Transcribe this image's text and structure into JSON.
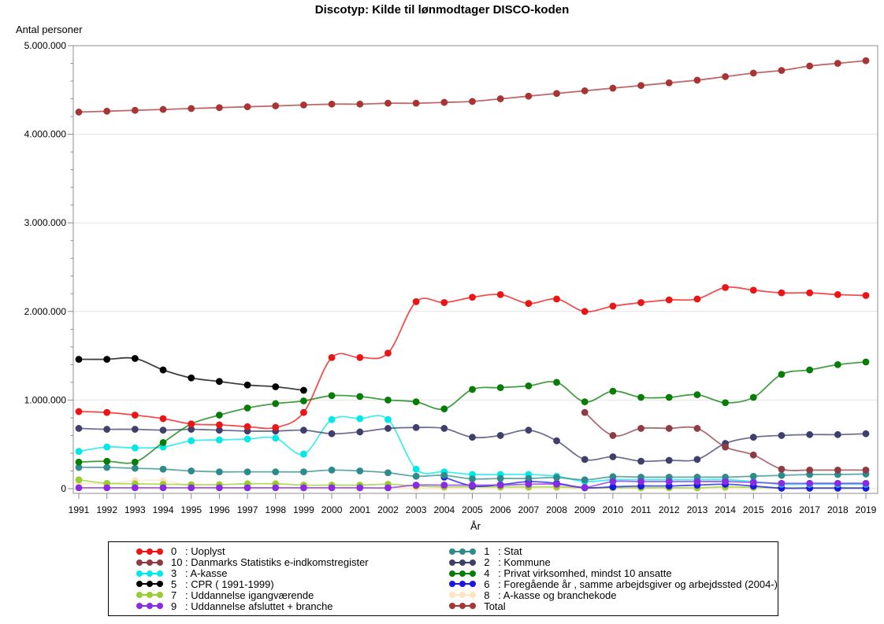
{
  "chart_data": {
    "type": "line",
    "title": "Discotyp: Kilde til lønmodtager DISCO-koden",
    "xlabel": "År",
    "ylabel": "Antal personer",
    "x": [
      1991,
      1992,
      1993,
      1994,
      1995,
      1996,
      1997,
      1998,
      1999,
      2000,
      2001,
      2002,
      2003,
      2004,
      2005,
      2006,
      2007,
      2008,
      2009,
      2010,
      2011,
      2012,
      2013,
      2014,
      2015,
      2016,
      2017,
      2018,
      2019
    ],
    "ylim": [
      0,
      5000000
    ],
    "ytick_interval": 1000000,
    "yminor_interval": 200000,
    "ytick_labels": [
      "0",
      "1.000.000",
      "2.000.000",
      "3.000.000",
      "4.000.000",
      "5.000.000"
    ],
    "grid": true,
    "legend_position": "bottom",
    "legend_rows": 6,
    "axis_color": "#8c8c8c",
    "grid_color": "#e5e5e5",
    "series": [
      {
        "id": "0",
        "code": "0",
        "label": "Uoplyst",
        "color": "#ec1414",
        "values": [
          870000,
          860000,
          830000,
          790000,
          730000,
          720000,
          700000,
          690000,
          860000,
          1480000,
          1480000,
          1530000,
          2110000,
          2100000,
          2160000,
          2190000,
          2090000,
          2140000,
          2000000,
          2060000,
          2100000,
          2130000,
          2140000,
          2270000,
          2240000,
          2210000,
          2210000,
          2190000,
          2180000
        ]
      },
      {
        "id": "10",
        "code": "10",
        "label": "Danmarks Statistiks e-indkomstregister",
        "color": "#8f3b44",
        "values": [
          null,
          null,
          null,
          null,
          null,
          null,
          null,
          null,
          null,
          null,
          null,
          null,
          null,
          null,
          null,
          null,
          null,
          null,
          860000,
          600000,
          680000,
          680000,
          680000,
          470000,
          380000,
          220000,
          210000,
          210000,
          210000
        ]
      },
      {
        "id": "3",
        "code": "3",
        "label": "A-kasse",
        "color": "#00e8e8",
        "values": [
          420000,
          470000,
          460000,
          470000,
          540000,
          550000,
          560000,
          570000,
          390000,
          780000,
          790000,
          780000,
          220000,
          190000,
          160000,
          160000,
          160000,
          140000,
          80000,
          100000,
          100000,
          100000,
          100000,
          100000,
          80000,
          50000,
          50000,
          50000,
          50000
        ]
      },
      {
        "id": "5",
        "code": "5",
        "label": "CPR ( 1991-1999)",
        "color": "#000000",
        "values": [
          1460000,
          1460000,
          1470000,
          1340000,
          1250000,
          1210000,
          1170000,
          1150000,
          1110000,
          null,
          null,
          null,
          null,
          null,
          null,
          null,
          null,
          null,
          null,
          null,
          null,
          null,
          null,
          null,
          null,
          null,
          null,
          null,
          null
        ]
      },
      {
        "id": "7",
        "code": "7",
        "label": "Uddannelse igangværende",
        "color": "#9acd32",
        "values": [
          100000,
          60000,
          55000,
          50000,
          45000,
          45000,
          55000,
          55000,
          40000,
          40000,
          40000,
          50000,
          30000,
          20000,
          20000,
          20000,
          20000,
          20000,
          10000,
          10000,
          10000,
          10000,
          10000,
          20000,
          15000,
          10000,
          10000,
          10000,
          10000
        ]
      },
      {
        "id": "9",
        "code": "9",
        "label": "Uddannelse afsluttet + branche",
        "color": "#8a2be2",
        "values": [
          10000,
          10000,
          10000,
          10000,
          10000,
          10000,
          10000,
          10000,
          10000,
          10000,
          10000,
          10000,
          40000,
          40000,
          40000,
          40000,
          50000,
          50000,
          15000,
          80000,
          80000,
          80000,
          80000,
          80000,
          70000,
          60000,
          60000,
          60000,
          60000
        ]
      },
      {
        "id": "1",
        "code": "1",
        "label": "Stat",
        "color": "#2e8b8b",
        "values": [
          240000,
          240000,
          230000,
          220000,
          200000,
          190000,
          190000,
          190000,
          190000,
          210000,
          200000,
          180000,
          140000,
          150000,
          110000,
          115000,
          115000,
          125000,
          100000,
          135000,
          130000,
          130000,
          130000,
          130000,
          140000,
          150000,
          160000,
          160000,
          165000
        ]
      },
      {
        "id": "2",
        "code": "2",
        "label": "Kommune",
        "color": "#3f3f6e",
        "values": [
          680000,
          670000,
          670000,
          660000,
          670000,
          660000,
          650000,
          650000,
          660000,
          620000,
          640000,
          680000,
          690000,
          680000,
          580000,
          600000,
          660000,
          540000,
          330000,
          360000,
          310000,
          320000,
          330000,
          510000,
          580000,
          600000,
          610000,
          610000,
          620000
        ]
      },
      {
        "id": "4",
        "code": "4",
        "label": "Privat virksomhed, mindst 10 ansatte",
        "color": "#077d07",
        "values": [
          300000,
          310000,
          300000,
          520000,
          730000,
          830000,
          910000,
          960000,
          990000,
          1050000,
          1040000,
          1000000,
          980000,
          900000,
          1120000,
          1140000,
          1160000,
          1200000,
          980000,
          1100000,
          1030000,
          1030000,
          1060000,
          970000,
          1030000,
          1290000,
          1340000,
          1400000,
          1430000
        ]
      },
      {
        "id": "6",
        "code": "6",
        "label": "Foregående år , samme arbejdsgiver og arbejdssted (2004-)",
        "color": "#1717e6",
        "values": [
          null,
          null,
          null,
          null,
          null,
          null,
          null,
          null,
          null,
          null,
          null,
          null,
          null,
          130000,
          30000,
          45000,
          80000,
          60000,
          10000,
          20000,
          30000,
          30000,
          40000,
          50000,
          30000,
          5000,
          5000,
          5000,
          5000
        ]
      },
      {
        "id": "8",
        "code": "8",
        "label": "A-kasse og branchekode",
        "color": "#ffe4c0",
        "values": [
          60000,
          55000,
          90000,
          90000,
          30000,
          15000,
          10000,
          10000,
          5000,
          5000,
          5000,
          5000,
          5000,
          5000,
          5000,
          5000,
          5000,
          5000,
          5000,
          5000,
          5000,
          5000,
          5000,
          5000,
          5000,
          5000,
          5000,
          5000,
          5000
        ]
      },
      {
        "id": "total",
        "code": null,
        "label": "Total",
        "color": "#a93434",
        "values": [
          4250000,
          4260000,
          4270000,
          4280000,
          4290000,
          4300000,
          4310000,
          4320000,
          4330000,
          4340000,
          4340000,
          4350000,
          4350000,
          4360000,
          4370000,
          4400000,
          4430000,
          4460000,
          4490000,
          4520000,
          4550000,
          4580000,
          4610000,
          4650000,
          4690000,
          4720000,
          4770000,
          4800000,
          4830000
        ]
      }
    ]
  }
}
